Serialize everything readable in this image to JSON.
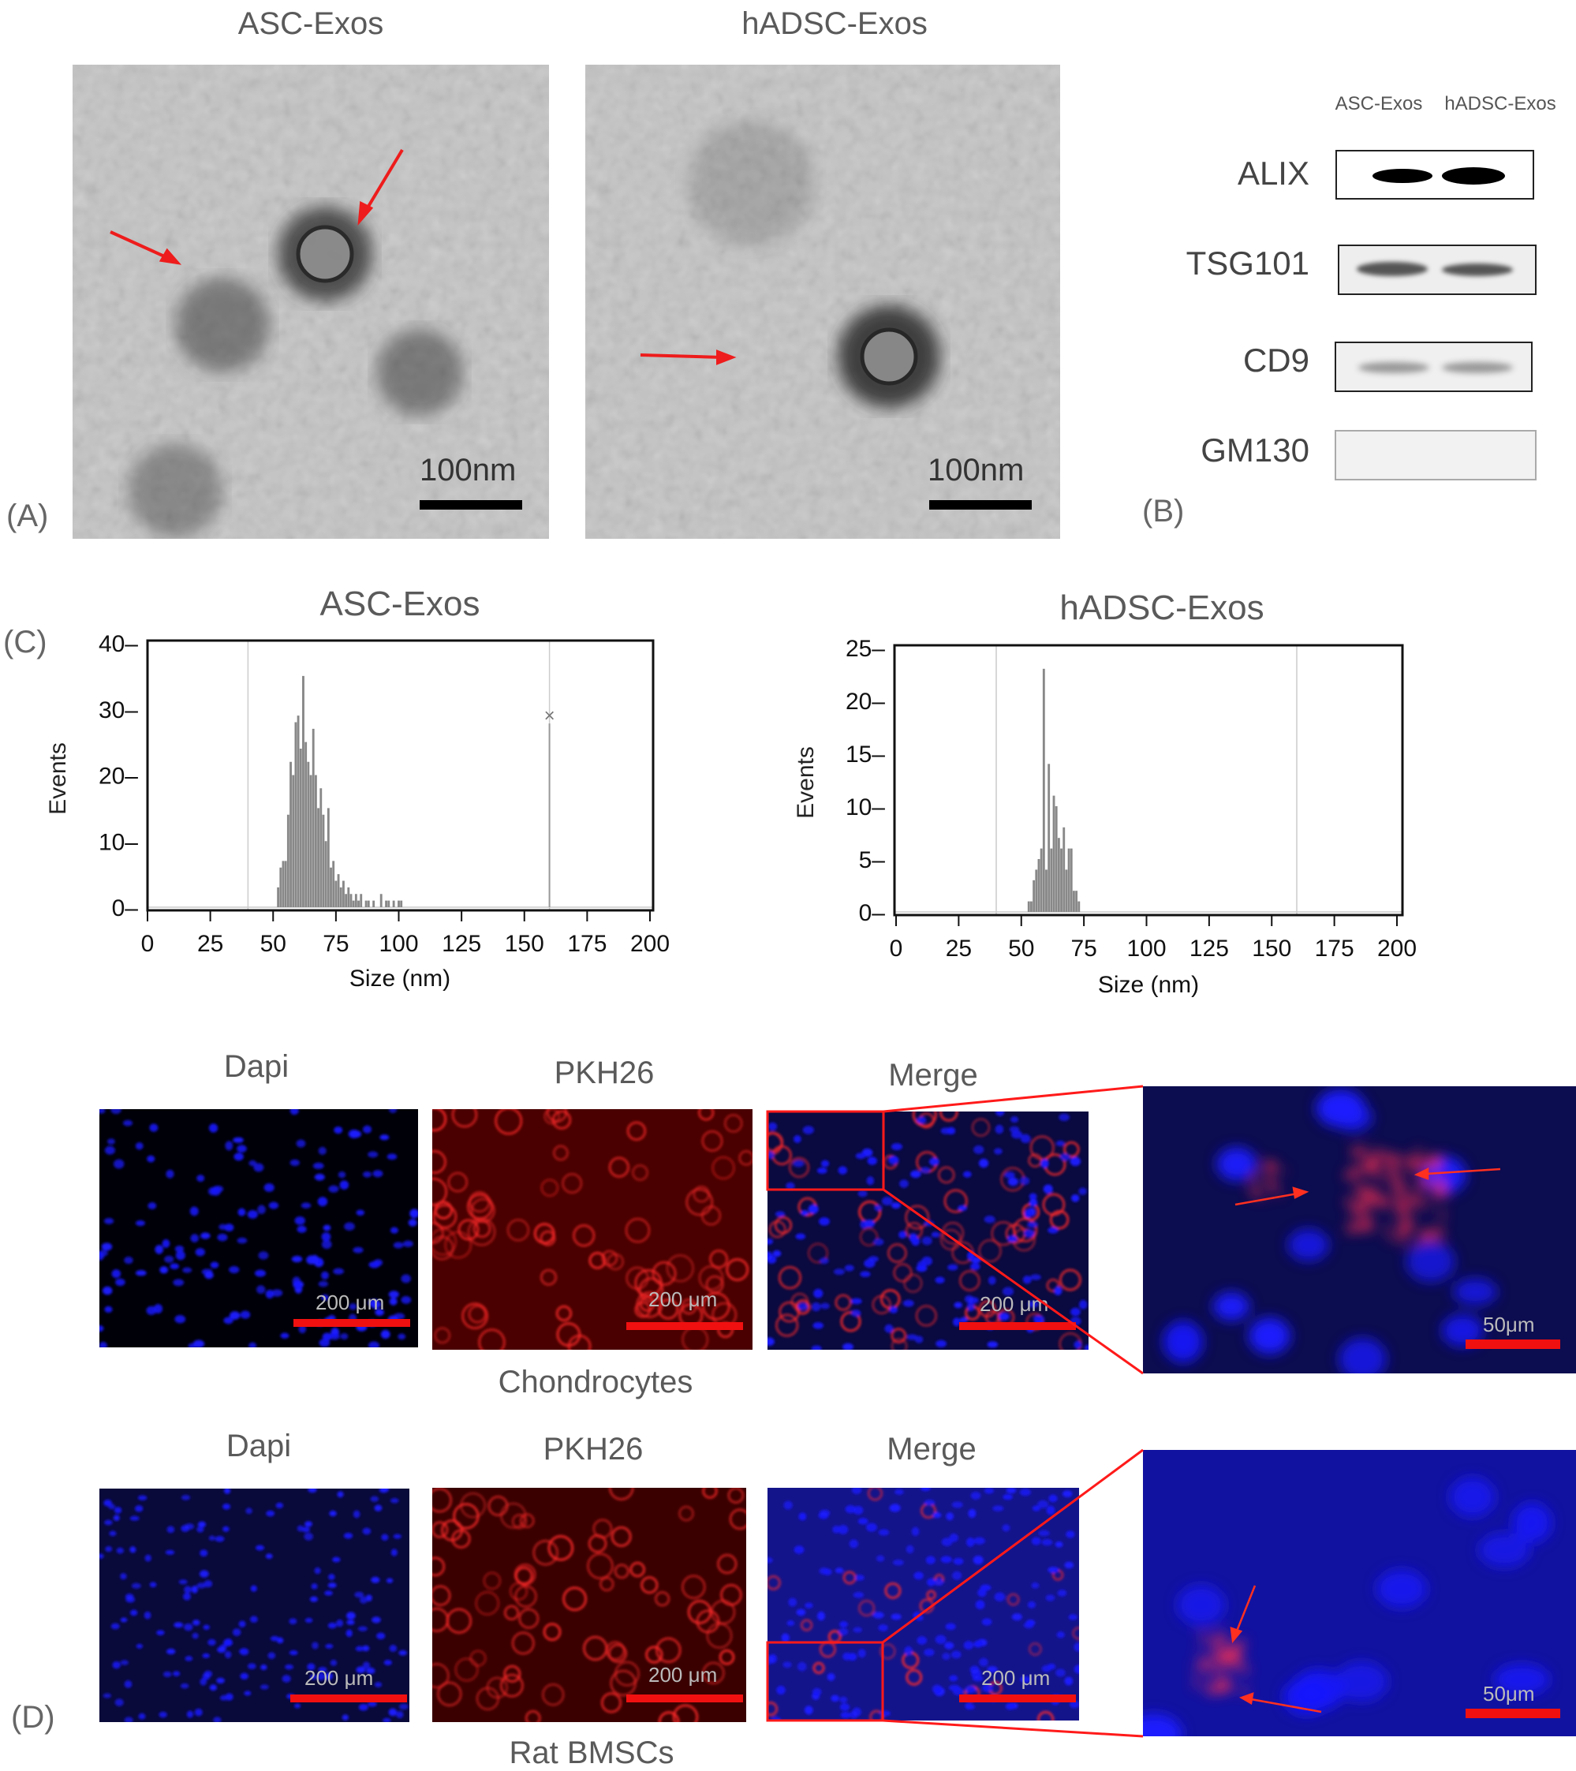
{
  "panel_a": {
    "label": "(A)",
    "images": [
      {
        "title": "ASC-Exos",
        "scale_bar": "100nm"
      },
      {
        "title": "hADSC-Exos",
        "scale_bar": "100nm"
      }
    ],
    "arrow_color": "#ee1c1c"
  },
  "panel_b": {
    "label": "(B)",
    "lanes": [
      "ASC-Exos",
      "hADSC-Exos"
    ],
    "blots": [
      {
        "protein": "ALIX",
        "band_intensity": [
          0.95,
          1.0
        ]
      },
      {
        "protein": "TSG101",
        "band_intensity": [
          0.45,
          0.45
        ]
      },
      {
        "protein": "CD9",
        "band_intensity": [
          0.2,
          0.2
        ]
      },
      {
        "protein": "GM130",
        "band_intensity": [
          0.0,
          0.0
        ]
      }
    ]
  },
  "panel_c": {
    "label": "(C)"
  },
  "chart_data": [
    {
      "type": "bar",
      "title": "ASC-Exos",
      "xlabel": "Size (nm)",
      "ylabel": "Events",
      "xlim": [
        0,
        200
      ],
      "ylim": [
        0,
        40
      ],
      "xticks": [
        "0",
        "25",
        "50",
        "75",
        "100",
        "125",
        "150",
        "175",
        "200"
      ],
      "yticks": [
        "0",
        "10",
        "20",
        "30",
        "40"
      ],
      "reference_lines_x": [
        40,
        160
      ],
      "marker": {
        "x": 160,
        "y": 29,
        "symbol": "×"
      },
      "x": [
        52,
        53,
        54,
        55,
        56,
        57,
        58,
        59,
        60,
        61,
        62,
        63,
        64,
        65,
        66,
        67,
        68,
        69,
        70,
        71,
        72,
        73,
        74,
        75,
        76,
        77,
        78,
        79,
        80,
        81,
        82,
        83,
        84,
        85,
        87,
        88,
        90,
        93,
        95,
        96,
        98,
        100,
        101
      ],
      "values": [
        3,
        6,
        7,
        7,
        14,
        22,
        20,
        28,
        29,
        24,
        35,
        25,
        22,
        20,
        27,
        20,
        15,
        18,
        14,
        10,
        15,
        6,
        7,
        4,
        5,
        3,
        4,
        2,
        3,
        2,
        1,
        2,
        1,
        2,
        1,
        1,
        1,
        2,
        1,
        1,
        1,
        1,
        1
      ]
    },
    {
      "type": "bar",
      "title": "hADSC-Exos",
      "xlabel": "Size (nm)",
      "ylabel": "Events",
      "xlim": [
        0,
        200
      ],
      "ylim": [
        0,
        25
      ],
      "xticks": [
        "0",
        "25",
        "50",
        "75",
        "100",
        "125",
        "150",
        "175",
        "200"
      ],
      "yticks": [
        "0",
        "5",
        "10",
        "15",
        "20",
        "25"
      ],
      "reference_lines_x": [
        40,
        160
      ],
      "x": [
        53,
        54,
        55,
        56,
        57,
        58,
        59,
        60,
        61,
        62,
        63,
        64,
        65,
        66,
        67,
        68,
        69,
        70,
        71,
        72,
        73
      ],
      "values": [
        1,
        1,
        3,
        4,
        5,
        6,
        23,
        4,
        14,
        6,
        11,
        10,
        7,
        6,
        8,
        4,
        6,
        6,
        2,
        2,
        1
      ]
    }
  ],
  "panel_d": {
    "label": "(D)",
    "rows": [
      {
        "caption": "Chondrocytes",
        "columns": [
          "Dapi",
          "PKH26",
          "Merge"
        ],
        "scale_bar": "200 μm",
        "zoom_scale_bar": "50μm"
      },
      {
        "caption": "Rat BMSCs",
        "columns": [
          "Dapi",
          "PKH26",
          "Merge"
        ],
        "scale_bar": "200 μm",
        "zoom_scale_bar": "50μm"
      }
    ],
    "colors": {
      "dapi": "#1a1aff",
      "pkh26": "#e01818",
      "highlight": "#ff1a1a"
    }
  }
}
